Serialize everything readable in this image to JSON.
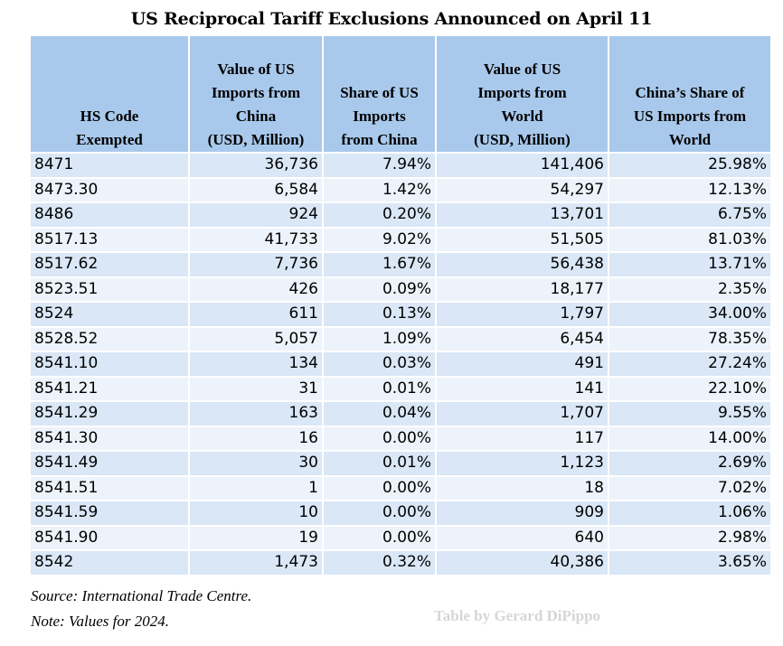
{
  "chart_data": {
    "type": "table",
    "title": "US Reciprocal Tariff Exclusions Announced on April 11",
    "columns": [
      [
        "HS Code",
        "Exempted"
      ],
      [
        "Value of US",
        "Imports from",
        "China",
        "(USD, Million)"
      ],
      [
        "Share of US",
        "Imports",
        "from China"
      ],
      [
        "Value of US",
        "Imports from",
        "World",
        "(USD, Million)"
      ],
      [
        "China’s Share of",
        "US Imports from",
        "World"
      ]
    ],
    "rows": [
      [
        "8471",
        "36,736",
        "7.94%",
        "141,406",
        "25.98%"
      ],
      [
        "8473.30",
        "6,584",
        "1.42%",
        "54,297",
        "12.13%"
      ],
      [
        "8486",
        "924",
        "0.20%",
        "13,701",
        "6.75%"
      ],
      [
        "8517.13",
        "41,733",
        "9.02%",
        "51,505",
        "81.03%"
      ],
      [
        "8517.62",
        "7,736",
        "1.67%",
        "56,438",
        "13.71%"
      ],
      [
        "8523.51",
        "426",
        "0.09%",
        "18,177",
        "2.35%"
      ],
      [
        "8524",
        "611",
        "0.13%",
        "1,797",
        "34.00%"
      ],
      [
        "8528.52",
        "5,057",
        "1.09%",
        "6,454",
        "78.35%"
      ],
      [
        "8541.10",
        "134",
        "0.03%",
        "491",
        "27.24%"
      ],
      [
        "8541.21",
        "31",
        "0.01%",
        "141",
        "22.10%"
      ],
      [
        "8541.29",
        "163",
        "0.04%",
        "1,707",
        "9.55%"
      ],
      [
        "8541.30",
        "16",
        "0.00%",
        "117",
        "14.00%"
      ],
      [
        "8541.49",
        "30",
        "0.01%",
        "1,123",
        "2.69%"
      ],
      [
        "8541.51",
        "1",
        "0.00%",
        "18",
        "7.02%"
      ],
      [
        "8541.59",
        "10",
        "0.00%",
        "909",
        "1.06%"
      ],
      [
        "8541.90",
        "19",
        "0.00%",
        "640",
        "2.98%"
      ],
      [
        "8542",
        "1,473",
        "0.32%",
        "40,386",
        "3.65%"
      ]
    ],
    "source": "Source: International Trade Centre.",
    "note": "Note: Values for 2024.",
    "credit": "Table by Gerard DiPippo"
  },
  "colors": {
    "header_bg": "#a9c9ec",
    "row_odd_bg": "#d9e7f6",
    "row_even_bg": "#edf3fb",
    "credit_text": "#d6d6d6"
  }
}
